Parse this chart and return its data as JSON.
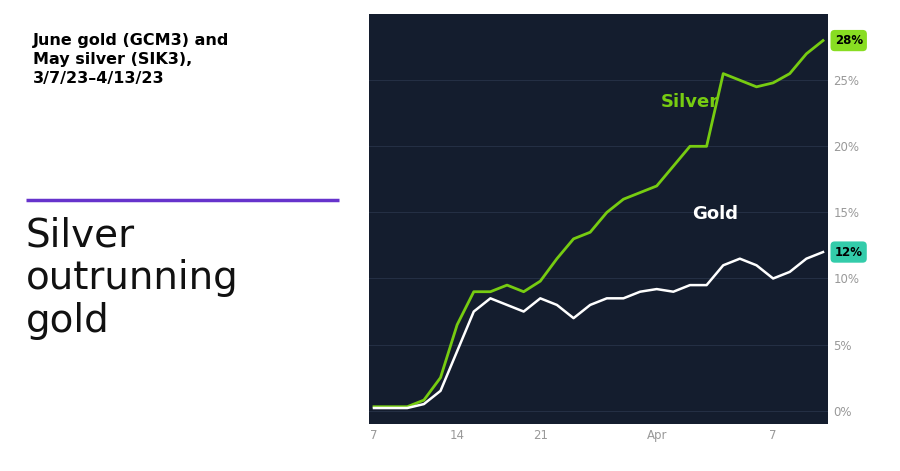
{
  "bg_color": "#141d2e",
  "left_panel_bg": "#ffffff",
  "title": "June gold (GCM3) and\nMay silver (SIK3),\n3/7/23–4/13/23",
  "subtitle": "Silver\noutrunning\ngold",
  "divider_color": "#6633cc",
  "silver_color": "#77cc11",
  "gold_color": "#ffffff",
  "silver_label": "Silver",
  "gold_label": "Gold",
  "silver_end_pct": "28%",
  "gold_end_pct": "12%",
  "silver_badge_color": "#88dd22",
  "gold_badge_color": "#33ccaa",
  "x_ticks": [
    0,
    5,
    10,
    17,
    24
  ],
  "x_tick_labels": [
    "7",
    "14",
    "21",
    "Apr",
    "7"
  ],
  "ylim": [
    -1,
    30
  ],
  "y_ticks": [
    0,
    5,
    10,
    15,
    20,
    25
  ],
  "silver_data": [
    0.3,
    0.3,
    0.3,
    0.8,
    2.5,
    6.5,
    9.0,
    9.0,
    9.5,
    9.0,
    9.8,
    11.5,
    13.0,
    13.5,
    15.0,
    16.0,
    16.5,
    17.0,
    18.5,
    20.0,
    20.0,
    25.5,
    25.0,
    24.5,
    24.8,
    25.5,
    27.0,
    28.0
  ],
  "gold_data": [
    0.2,
    0.2,
    0.2,
    0.5,
    1.5,
    4.5,
    7.5,
    8.5,
    8.0,
    7.5,
    8.5,
    8.0,
    7.0,
    8.0,
    8.5,
    8.5,
    9.0,
    9.2,
    9.0,
    9.5,
    9.5,
    11.0,
    11.5,
    11.0,
    10.0,
    10.5,
    11.5,
    12.0
  ]
}
